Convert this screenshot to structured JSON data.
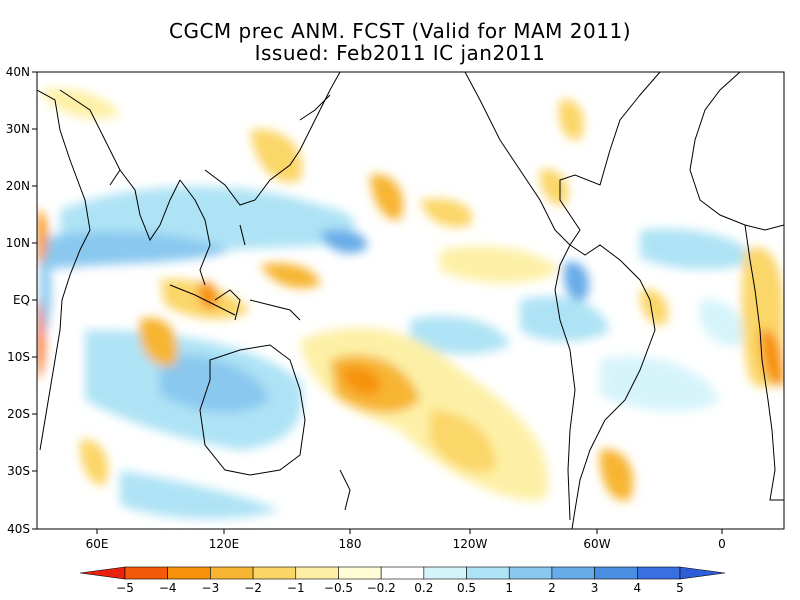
{
  "title": "CGCM prec ANM. FCST  (Valid for MAM 2011)",
  "subtitle": "Issued:  Feb2011 IC jan2011",
  "map": {
    "lat_labels": [
      "40N",
      "30N",
      "20N",
      "10N",
      "EQ",
      "10S",
      "20S",
      "30S",
      "40S"
    ],
    "lon_labels": [
      "60E",
      "120E",
      "180",
      "120W",
      "60W",
      "0"
    ]
  },
  "colorbar": {
    "labels": [
      "−5",
      "−4",
      "−3",
      "−2",
      "−1",
      "−0.5",
      "−0.2",
      "0.2",
      "0.5",
      "1",
      "2",
      "3",
      "4",
      "5"
    ],
    "colors": [
      "#e8220e",
      "#f25a0a",
      "#f7920a",
      "#f7b531",
      "#fbd667",
      "#fdf0a6",
      "#fefdd6",
      "#ffffff",
      "#d5f4fa",
      "#aee3f5",
      "#8ac8ef",
      "#67ace8",
      "#4a8ee1",
      "#3a6fe0",
      "#2e5ed8"
    ]
  }
}
